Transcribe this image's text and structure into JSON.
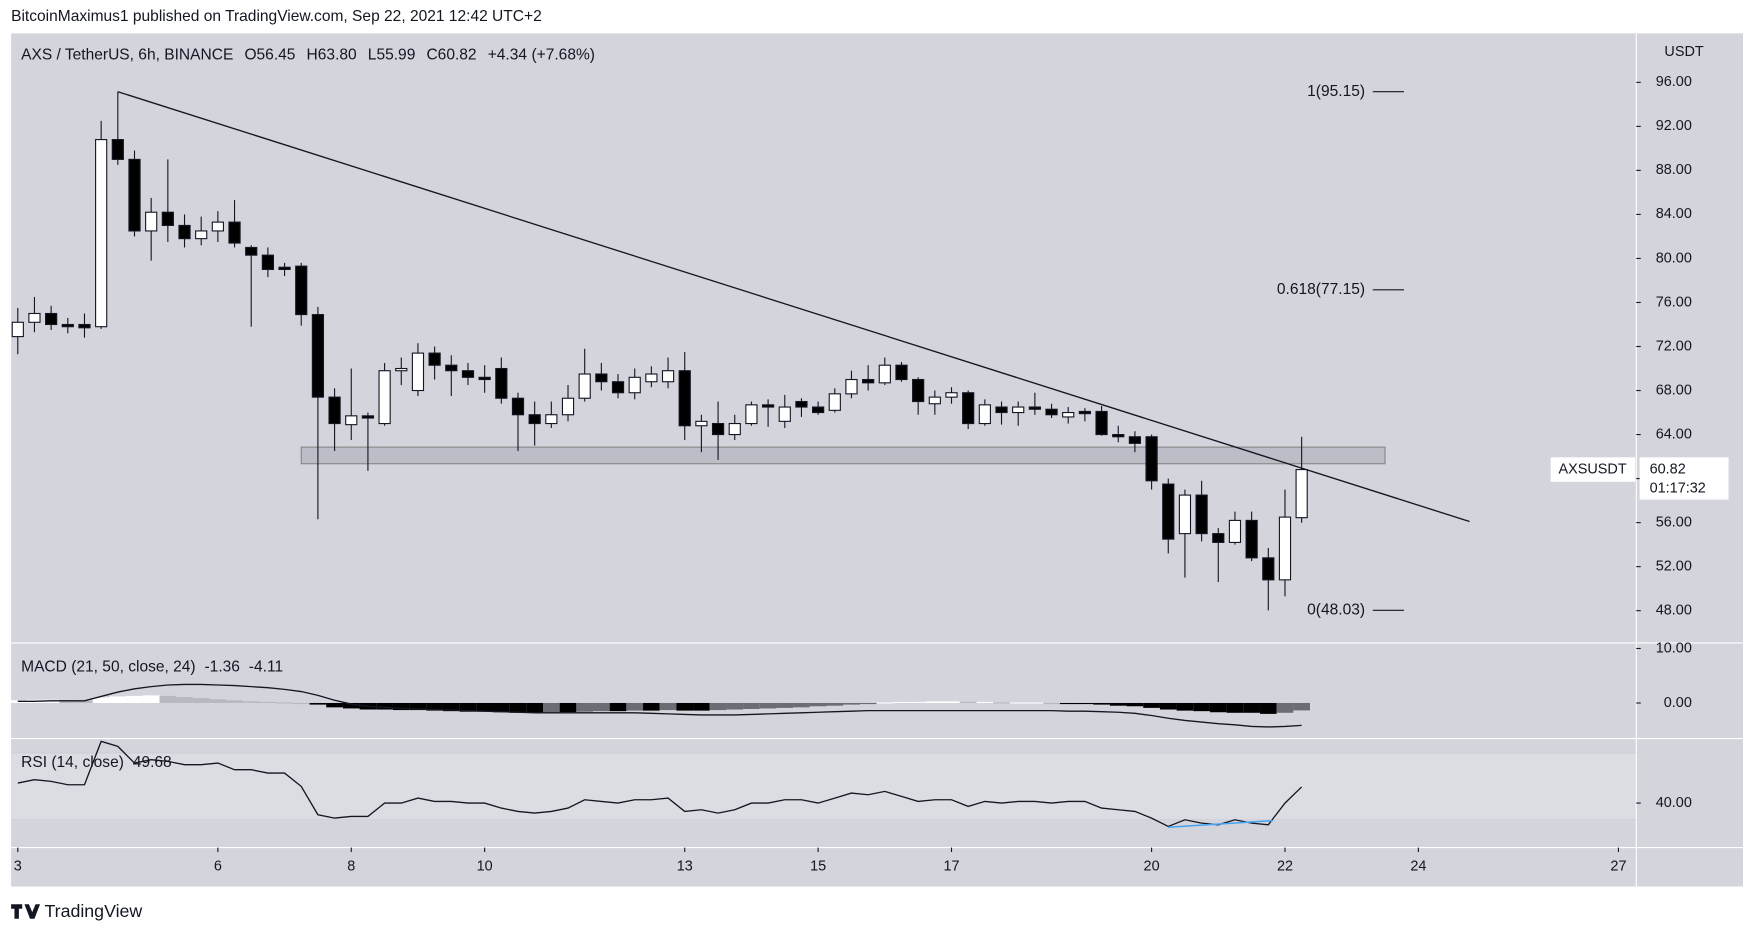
{
  "header": {
    "publisher": "BitcoinMaximus1 published on TradingView.com, Sep 22, 2021 12:42 UTC+2",
    "brand": "TradingView"
  },
  "chart_data": [
    {
      "type": "candlestick",
      "title": "AXS / TetherUS, 6h, BINANCE",
      "legend_values": [
        {
          "key": "O",
          "text": "56.45"
        },
        {
          "key": "H",
          "text": "63.80"
        },
        {
          "key": "L",
          "text": "55.99"
        },
        {
          "key": "C",
          "text": "60.82"
        },
        {
          "key": "+4.34",
          "text": "(+7.68%)"
        }
      ],
      "unit": "USDT",
      "series": [
        {
          "name": "AXSUSDT",
          "open": [
            72.9,
            74.2,
            75.0,
            74.0,
            74.0,
            73.8,
            90.8,
            89.0,
            82.5,
            84.2,
            83.0,
            81.8,
            82.5,
            83.3,
            81.0,
            80.3,
            79.2,
            79.3,
            74.9,
            67.4,
            64.9,
            65.7,
            65.0,
            69.8,
            68.0,
            71.4,
            70.3,
            69.8,
            69.2,
            70.0,
            67.3,
            65.8,
            65.0,
            65.8,
            67.3,
            69.5,
            68.8,
            67.8,
            68.8,
            68.8,
            69.8,
            64.8,
            65.0,
            64.0,
            65.0,
            66.7,
            65.2,
            67.0,
            66.5,
            66.2,
            67.7,
            69.0,
            68.7,
            70.3,
            69.0,
            66.8,
            67.4,
            67.8,
            65.0,
            66.5,
            66.0,
            66.5,
            66.3,
            65.6,
            66.1,
            66.1,
            64.0,
            63.8,
            63.8,
            59.5,
            55.0,
            58.5,
            55.0,
            54.2,
            56.2,
            52.8,
            50.8,
            56.45
          ],
          "high": [
            75.5,
            76.5,
            75.7,
            74.6,
            75.0,
            92.5,
            95.15,
            89.8,
            85.5,
            89.0,
            84.0,
            83.8,
            84.3,
            85.3,
            81.2,
            81.0,
            79.6,
            79.6,
            75.6,
            68.2,
            70.0,
            66.0,
            70.5,
            71.0,
            72.3,
            72.0,
            71.2,
            70.5,
            70.3,
            71.0,
            67.8,
            67.0,
            67.0,
            68.5,
            71.8,
            70.5,
            69.5,
            70.0,
            70.2,
            71.0,
            71.5,
            65.8,
            67.0,
            65.8,
            67.0,
            67.2,
            67.6,
            67.3,
            67.0,
            68.2,
            69.8,
            70.3,
            71.0,
            70.6,
            69.2,
            68.0,
            68.3,
            68.0,
            67.2,
            67.0,
            67.0,
            67.8,
            66.8,
            66.5,
            66.4,
            66.6,
            64.8,
            64.3,
            64.0,
            60.0,
            59.0,
            59.8,
            55.5,
            57.0,
            57.0,
            53.7,
            59.0,
            63.8
          ],
          "low": [
            71.3,
            73.3,
            73.5,
            73.2,
            72.8,
            73.6,
            88.5,
            82.0,
            79.8,
            81.5,
            81.0,
            81.2,
            81.5,
            81.0,
            73.8,
            78.3,
            78.4,
            73.9,
            56.3,
            62.5,
            63.5,
            60.7,
            64.8,
            68.5,
            67.5,
            69.0,
            67.5,
            68.5,
            67.8,
            66.8,
            62.5,
            63.0,
            64.6,
            65.2,
            67.0,
            68.0,
            67.3,
            67.2,
            68.3,
            68.2,
            63.5,
            62.4,
            61.7,
            63.5,
            64.8,
            64.7,
            64.6,
            65.6,
            65.8,
            66.0,
            67.3,
            68.0,
            68.5,
            68.8,
            65.8,
            65.8,
            66.8,
            64.5,
            64.8,
            64.9,
            64.8,
            65.8,
            65.5,
            65.0,
            65.2,
            63.9,
            63.3,
            62.4,
            59.0,
            53.2,
            51.0,
            54.3,
            50.6,
            54.0,
            52.5,
            48.03,
            49.3,
            55.99
          ],
          "close": [
            74.2,
            75.0,
            74.0,
            73.8,
            73.7,
            90.8,
            89.0,
            82.5,
            84.2,
            83.0,
            81.8,
            82.5,
            83.3,
            81.4,
            80.3,
            79.0,
            79.0,
            74.9,
            67.4,
            65.0,
            65.7,
            65.5,
            69.8,
            70.0,
            71.4,
            70.3,
            69.8,
            69.2,
            69.0,
            67.3,
            65.8,
            65.0,
            65.8,
            67.3,
            69.5,
            68.8,
            67.8,
            69.2,
            69.5,
            69.8,
            64.8,
            65.2,
            64.0,
            65.0,
            66.7,
            66.5,
            66.5,
            66.5,
            66.0,
            67.7,
            69.0,
            68.7,
            70.3,
            69.0,
            67.0,
            67.4,
            67.8,
            65.0,
            66.7,
            66.0,
            66.5,
            66.3,
            65.8,
            66.0,
            65.9,
            64.0,
            63.8,
            63.2,
            59.8,
            54.5,
            58.5,
            55.0,
            54.2,
            56.2,
            52.8,
            50.8,
            56.5,
            60.82
          ]
        }
      ],
      "countdown": "01:17:32",
      "annotations": [
        {
          "value": 95.15,
          "label": "1(95.15)"
        },
        {
          "value": 77.15,
          "label": "0.618(77.15)"
        },
        {
          "value": 48.03,
          "label": "0(48.03)"
        }
      ],
      "trendline": {
        "x": [
          6,
          87.07
        ],
        "y": [
          95.15,
          56.1
        ]
      },
      "zone": {
        "x": [
          17,
          82
        ],
        "y": [
          61.35,
          62.86
        ]
      },
      "xlim": [
        -0.4,
        97.07
      ],
      "xticks": [
        {
          "value": 0,
          "label": "3"
        },
        {
          "value": 12,
          "label": "6"
        },
        {
          "value": 20,
          "label": "8"
        },
        {
          "value": 28,
          "label": "10"
        },
        {
          "value": 40,
          "label": "13"
        },
        {
          "value": 48,
          "label": "15"
        },
        {
          "value": 56,
          "label": "17"
        },
        {
          "value": 68,
          "label": "20"
        },
        {
          "value": 76,
          "label": "22"
        },
        {
          "value": 84,
          "label": "24"
        },
        {
          "value": 96,
          "label": "27"
        }
      ],
      "ylim": [
        45.07,
        100.45
      ],
      "yticks": [
        {
          "value": 48,
          "label": "48.00"
        },
        {
          "value": 52,
          "label": "52.00"
        },
        {
          "value": 56,
          "label": "56.00"
        },
        {
          "value": 60,
          "label": "60.00"
        },
        {
          "value": 64,
          "label": "64.00"
        },
        {
          "value": 68,
          "label": "68.00"
        },
        {
          "value": 72,
          "label": "72.00"
        },
        {
          "value": 76,
          "label": "76.00"
        },
        {
          "value": 80,
          "label": "80.00"
        },
        {
          "value": 84,
          "label": "84.00"
        },
        {
          "value": 88,
          "label": "88.00"
        },
        {
          "value": 92,
          "label": "92.00"
        },
        {
          "value": 96,
          "label": "96.00"
        }
      ],
      "up_color": "#ffffff",
      "down_color": "#000000",
      "line_color": "#131722"
    },
    {
      "type": "macd",
      "title": "MACD (21, 50, close, 24)",
      "histogram": [
        0.5,
        0.6,
        0.6,
        0.5,
        0.4,
        1.0,
        1.2,
        1.3,
        1.4,
        1.3,
        1.1,
        0.9,
        0.7,
        0.5,
        0.3,
        0.2,
        0.1,
        0.0,
        -0.3,
        -0.8,
        -1.0,
        -1.2,
        -1.2,
        -1.3,
        -1.3,
        -1.4,
        -1.5,
        -1.6,
        -1.6,
        -1.7,
        -1.8,
        -1.8,
        -1.7,
        -1.7,
        -1.6,
        -1.5,
        -1.5,
        -1.4,
        -1.4,
        -1.3,
        -1.4,
        -1.4,
        -1.3,
        -1.2,
        -1.1,
        -1.0,
        -0.9,
        -0.8,
        -0.6,
        -0.5,
        -0.3,
        -0.2,
        0.1,
        0.2,
        0.2,
        0.3,
        0.3,
        0.2,
        0.2,
        0.1,
        0.1,
        0.1,
        0.0,
        -0.1,
        -0.2,
        -0.3,
        -0.5,
        -0.6,
        -0.9,
        -1.2,
        -1.4,
        -1.5,
        -1.7,
        -1.8,
        -1.8,
        -2.0,
        -1.8,
        -1.36
      ],
      "macd": [
        0.3,
        0.3,
        0.4,
        0.4,
        0.4,
        1.2,
        2.0,
        2.6,
        3.0,
        3.3,
        3.4,
        3.4,
        3.3,
        3.2,
        3.0,
        2.8,
        2.5,
        2.1,
        1.4,
        0.5,
        -0.2,
        -0.6,
        -0.8,
        -1.0,
        -1.1,
        -1.2,
        -1.3,
        -1.4,
        -1.5,
        -1.6,
        -1.7,
        -1.8,
        -1.8,
        -1.8,
        -1.8,
        -1.8,
        -1.8,
        -1.8,
        -1.9,
        -2.0,
        -2.1,
        -2.2,
        -2.2,
        -2.2,
        -2.1,
        -2.0,
        -1.9,
        -1.8,
        -1.7,
        -1.6,
        -1.5,
        -1.4,
        -1.4,
        -1.4,
        -1.4,
        -1.4,
        -1.4,
        -1.4,
        -1.4,
        -1.4,
        -1.4,
        -1.4,
        -1.4,
        -1.5,
        -1.5,
        -1.6,
        -1.7,
        -1.9,
        -2.3,
        -2.8,
        -3.2,
        -3.5,
        -3.8,
        -4.0,
        -4.3,
        -4.4,
        -4.3,
        -4.11
      ],
      "ylim": [
        -6.53,
        11.02
      ],
      "yticks": [
        {
          "value": 10,
          "label": "10.00"
        },
        {
          "value": 0,
          "label": "0.00"
        }
      ]
    },
    {
      "type": "rsi",
      "title": "RSI (14, close)",
      "values": [
        52,
        54,
        53,
        51,
        51,
        77,
        74,
        64,
        66,
        65,
        63,
        63,
        64,
        60,
        60,
        58,
        58,
        50,
        33,
        31,
        32,
        32,
        40,
        40,
        43,
        41,
        41,
        40,
        40,
        37,
        35,
        34,
        35,
        37,
        42,
        41,
        40,
        42,
        42,
        43,
        35,
        36,
        34,
        36,
        40,
        40,
        42,
        42,
        40,
        43,
        46,
        45,
        47,
        44,
        41,
        42,
        42,
        38,
        41,
        40,
        41,
        41,
        40,
        41,
        41,
        37,
        36,
        35,
        31,
        26,
        30,
        28,
        27,
        30,
        28,
        27,
        40,
        49.68
      ],
      "band": [
        30,
        70
      ],
      "divergence": {
        "x": [
          69,
          75.3
        ],
        "y": [
          25.5,
          29.5
        ],
        "color": "#42a5f5"
      },
      "ylim": [
        13.33,
        78.67
      ],
      "yticks": [
        {
          "value": 40,
          "label": "40.00"
        }
      ]
    }
  ]
}
